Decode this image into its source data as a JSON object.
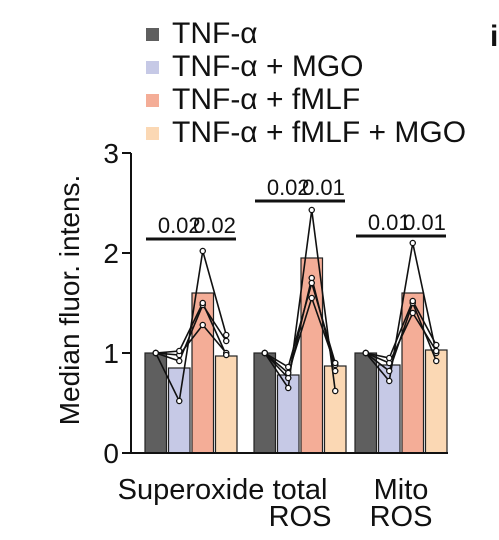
{
  "panel_letter": "i",
  "colors": {
    "TNF-α": "#5f5f5f",
    "TNF-α + MGO": "#c6c9e6",
    "TNF-α + fMLF": "#f4ad97",
    "TNF-α + fMLF + MGO": "#fbd8b4"
  },
  "chart_data": {
    "type": "bar",
    "ylabel": "Median fluor. intens.",
    "ylim": [
      0,
      3
    ],
    "yticks": [
      "0",
      "1",
      "2",
      "3"
    ],
    "categories": [
      "Superoxide",
      "total ROS",
      "Mito ROS"
    ],
    "category_lines": [
      [
        "Superoxide"
      ],
      [
        "total",
        "ROS"
      ],
      [
        "Mito",
        "ROS"
      ]
    ],
    "series": [
      {
        "name": "TNF-α",
        "values": [
          1.0,
          1.0,
          1.0
        ],
        "points": [
          [
            1.0,
            1.0,
            1.0,
            1.0
          ],
          [
            1.0,
            1.0,
            1.0,
            1.0
          ],
          [
            1.0,
            1.0,
            1.0,
            1.0
          ]
        ]
      },
      {
        "name": "TNF-α + MGO",
        "values": [
          0.85,
          0.78,
          0.88
        ],
        "points": [
          [
            0.52,
            0.92,
            0.98,
            1.02
          ],
          [
            0.65,
            0.75,
            0.8,
            0.86
          ],
          [
            0.72,
            0.82,
            0.9,
            0.95
          ]
        ]
      },
      {
        "name": "TNF-α + fMLF",
        "values": [
          1.6,
          1.95,
          1.6
        ],
        "points": [
          [
            2.02,
            1.48,
            1.28,
            1.5
          ],
          [
            2.43,
            1.75,
            1.55,
            1.7
          ],
          [
            2.1,
            1.5,
            1.4,
            1.52
          ]
        ]
      },
      {
        "name": "TNF-α + fMLF + MGO",
        "values": [
          0.97,
          0.87,
          1.03
        ],
        "points": [
          [
            1.18,
            1.12,
            1.0,
            0.98
          ],
          [
            0.62,
            0.82,
            0.88,
            0.9
          ],
          [
            1.0,
            0.92,
            1.02,
            1.08
          ]
        ]
      }
    ],
    "annotations": [
      {
        "text": "0.02",
        "category": 0,
        "from": 0,
        "to": 2,
        "y": 2.14
      },
      {
        "text": "0.02",
        "category": 0,
        "from": 2,
        "to": 3,
        "y": 2.14
      },
      {
        "text": "0.02",
        "category": 1,
        "from": 0,
        "to": 2,
        "y": 2.52
      },
      {
        "text": "0.01",
        "category": 1,
        "from": 2,
        "to": 3,
        "y": 2.52
      },
      {
        "text": "0.01",
        "category": 2,
        "from": 0,
        "to": 2,
        "y": 2.17
      },
      {
        "text": "0.01",
        "category": 2,
        "from": 2,
        "to": 3,
        "y": 2.17
      }
    ],
    "grid": false,
    "legend_position": "top"
  }
}
